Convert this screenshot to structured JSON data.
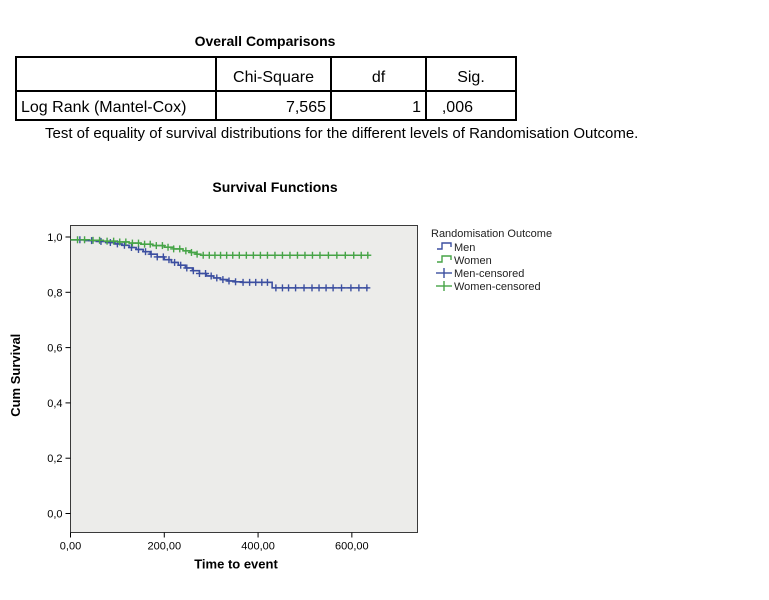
{
  "overall_comparisons": {
    "title": "Overall Comparisons",
    "columns": [
      "",
      "Chi-Square",
      "df",
      "Sig."
    ],
    "rows": [
      {
        "label": "Log Rank (Mantel-Cox)",
        "chi_square": "7,565",
        "df": "1",
        "sig": ",006"
      }
    ],
    "footnote": "Test of equality of survival distributions for the different levels of Randomisation Outcome."
  },
  "chart_data": {
    "type": "line",
    "subtype": "kaplan_meier_step",
    "title": "Survival Functions",
    "xlabel": "Time to event",
    "ylabel": "Cum Survival",
    "xlim": [
      0,
      740
    ],
    "ylim": [
      0.0,
      1.05
    ],
    "grid": false,
    "plot_background": "#ececea",
    "border_color": "#3a3a3a",
    "x_ticks": [
      {
        "value": 0,
        "label": "0,00"
      },
      {
        "value": 200,
        "label": "200,00"
      },
      {
        "value": 400,
        "label": "400,00"
      },
      {
        "value": 600,
        "label": "600,00"
      }
    ],
    "y_ticks": [
      {
        "value": 1.0,
        "label": "1,0"
      },
      {
        "value": 0.8,
        "label": "0,8"
      },
      {
        "value": 0.6,
        "label": "0,6"
      },
      {
        "value": 0.4,
        "label": "0,4"
      },
      {
        "value": 0.2,
        "label": "0,2"
      },
      {
        "value": 0.0,
        "label": "0,0"
      }
    ],
    "legend": {
      "title": "Randomisation Outcome",
      "position": "right",
      "entries": [
        {
          "label": "Men",
          "color": "#3C4FA0",
          "symbol": "step-line"
        },
        {
          "label": "Women",
          "color": "#46A447",
          "symbol": "step-line"
        },
        {
          "label": "Men-censored",
          "color": "#3C4FA0",
          "symbol": "plus"
        },
        {
          "label": "Women-censored",
          "color": "#46A447",
          "symbol": "plus"
        }
      ]
    },
    "series": [
      {
        "name": "Men",
        "color": "#3C4FA0",
        "steps": [
          [
            0,
            0.99
          ],
          [
            30,
            0.987
          ],
          [
            55,
            0.984
          ],
          [
            75,
            0.98
          ],
          [
            95,
            0.975
          ],
          [
            110,
            0.97
          ],
          [
            125,
            0.962
          ],
          [
            140,
            0.955
          ],
          [
            155,
            0.947
          ],
          [
            170,
            0.938
          ],
          [
            185,
            0.928
          ],
          [
            200,
            0.918
          ],
          [
            215,
            0.908
          ],
          [
            230,
            0.898
          ],
          [
            245,
            0.888
          ],
          [
            260,
            0.878
          ],
          [
            275,
            0.868
          ],
          [
            290,
            0.859
          ],
          [
            305,
            0.852
          ],
          [
            320,
            0.846
          ],
          [
            335,
            0.841
          ],
          [
            350,
            0.838
          ],
          [
            365,
            0.836
          ],
          [
            430,
            0.816
          ],
          [
            635,
            0.816
          ]
        ]
      },
      {
        "name": "Women",
        "color": "#46A447",
        "steps": [
          [
            0,
            0.99
          ],
          [
            40,
            0.988
          ],
          [
            70,
            0.985
          ],
          [
            100,
            0.982
          ],
          [
            125,
            0.978
          ],
          [
            150,
            0.974
          ],
          [
            175,
            0.969
          ],
          [
            200,
            0.963
          ],
          [
            220,
            0.957
          ],
          [
            240,
            0.95
          ],
          [
            255,
            0.944
          ],
          [
            268,
            0.938
          ],
          [
            278,
            0.934
          ],
          [
            635,
            0.934
          ]
        ]
      },
      {
        "name": "Men-censored",
        "on_series": "Men",
        "color": "#3C4FA0",
        "marker": "plus",
        "times": [
          20,
          45,
          65,
          85,
          100,
          115,
          130,
          145,
          160,
          172,
          185,
          198,
          210,
          222,
          235,
          248,
          262,
          275,
          288,
          300,
          312,
          325,
          338,
          352,
          368,
          382,
          395,
          408,
          420,
          438,
          452,
          465,
          480,
          498,
          515,
          530,
          545,
          560,
          578,
          598,
          615,
          632
        ]
      },
      {
        "name": "Women-censored",
        "on_series": "Women",
        "color": "#46A447",
        "marker": "plus",
        "times": [
          15,
          30,
          48,
          62,
          78,
          92,
          105,
          118,
          132,
          145,
          158,
          170,
          183,
          196,
          208,
          220,
          233,
          246,
          258,
          270,
          283,
          296,
          308,
          320,
          333,
          346,
          360,
          375,
          390,
          405,
          420,
          436,
          452,
          468,
          484,
          500,
          516,
          532,
          550,
          568,
          586,
          604,
          620,
          634
        ]
      }
    ]
  }
}
